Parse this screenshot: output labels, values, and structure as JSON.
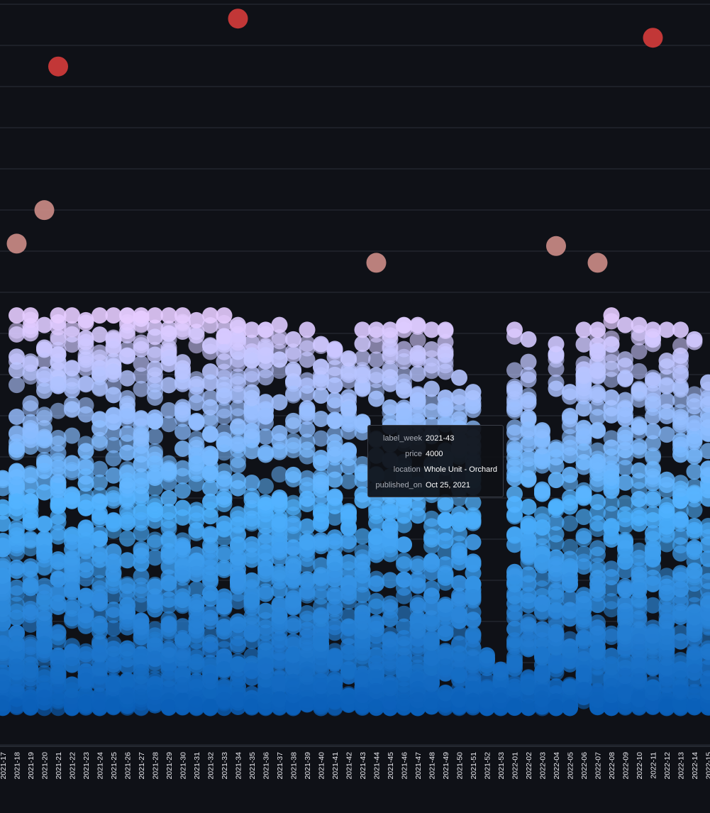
{
  "chart_data": {
    "type": "scatter",
    "x_field": "label_week",
    "y_field": "price",
    "categories": [
      "2021-17",
      "2021-18",
      "2021-19",
      "2021-20",
      "2021-21",
      "2021-22",
      "2021-23",
      "2021-24",
      "2021-25",
      "2021-26",
      "2021-27",
      "2021-28",
      "2021-29",
      "2021-30",
      "2021-31",
      "2021-32",
      "2021-33",
      "2021-34",
      "2021-35",
      "2021-36",
      "2021-37",
      "2021-38",
      "2021-39",
      "2021-40",
      "2021-41",
      "2021-42",
      "2021-43",
      "2021-44",
      "2021-45",
      "2021-46",
      "2021-47",
      "2021-48",
      "2021-49",
      "2021-50",
      "2021-51",
      "2021-52",
      "2021-53",
      "2022-01",
      "2022-02",
      "2022-03",
      "2022-04",
      "2022-05",
      "2022-06",
      "2022-07",
      "2022-08",
      "2022-09",
      "2022-10",
      "2022-11",
      "2022-12",
      "2022-13",
      "2022-14",
      "2022-15"
    ],
    "ylim": [
      0,
      15500
    ],
    "grid": true,
    "color_scale": {
      "low": "#0a5fb8",
      "mid": "#4fb2ff",
      "high": "#e6ccff",
      "outlier_low": "#c98a86",
      "outlier_high": "#d13b3b"
    },
    "outliers": [
      {
        "label_week": "2021-21",
        "price": 14200
      },
      {
        "label_week": "2021-34",
        "price": 15200
      },
      {
        "label_week": "2022-11",
        "price": 14800
      },
      {
        "label_week": "2021-20",
        "price": 11200
      },
      {
        "label_week": "2021-18",
        "price": 10500
      },
      {
        "label_week": "2021-44",
        "price": 10100
      },
      {
        "label_week": "2022-04",
        "price": 10450
      },
      {
        "label_week": "2022-07",
        "price": 10100
      }
    ],
    "band_max": [
      5600,
      9000,
      9000,
      8800,
      9000,
      9000,
      8900,
      9000,
      9000,
      9000,
      9000,
      9000,
      9000,
      9000,
      8900,
      9000,
      9000,
      8800,
      8700,
      8700,
      8800,
      8500,
      8700,
      8400,
      8300,
      8100,
      8700,
      8700,
      8700,
      8800,
      8800,
      8700,
      8700,
      7700,
      7400,
      1900,
      1600,
      8700,
      8500,
      6600,
      8400,
      7400,
      8700,
      8700,
      9000,
      8800,
      8800,
      8700,
      8700,
      8700,
      8500,
      7600
    ],
    "density": [
      0.9,
      1.0,
      1.0,
      1.0,
      1.0,
      1.0,
      1.0,
      1.0,
      1.0,
      1.0,
      1.0,
      1.0,
      1.0,
      1.0,
      1.0,
      1.0,
      1.0,
      1.0,
      1.0,
      1.0,
      1.0,
      1.0,
      1.0,
      1.0,
      1.0,
      1.0,
      1.0,
      1.0,
      1.0,
      1.0,
      1.0,
      1.0,
      1.0,
      1.0,
      0.95,
      0.35,
      0.55,
      1.0,
      0.9,
      1.0,
      1.0,
      0.9,
      1.0,
      1.0,
      1.0,
      1.0,
      1.0,
      1.0,
      1.0,
      1.0,
      1.0,
      0.9
    ]
  },
  "tooltip": {
    "rows": [
      {
        "key": "label_week",
        "value": "2021-43"
      },
      {
        "key": "price",
        "value": "4000"
      },
      {
        "key": "location",
        "value": "Whole Unit - Orchard"
      },
      {
        "key": "published_on",
        "value": "Oct 25, 2021"
      }
    ]
  }
}
